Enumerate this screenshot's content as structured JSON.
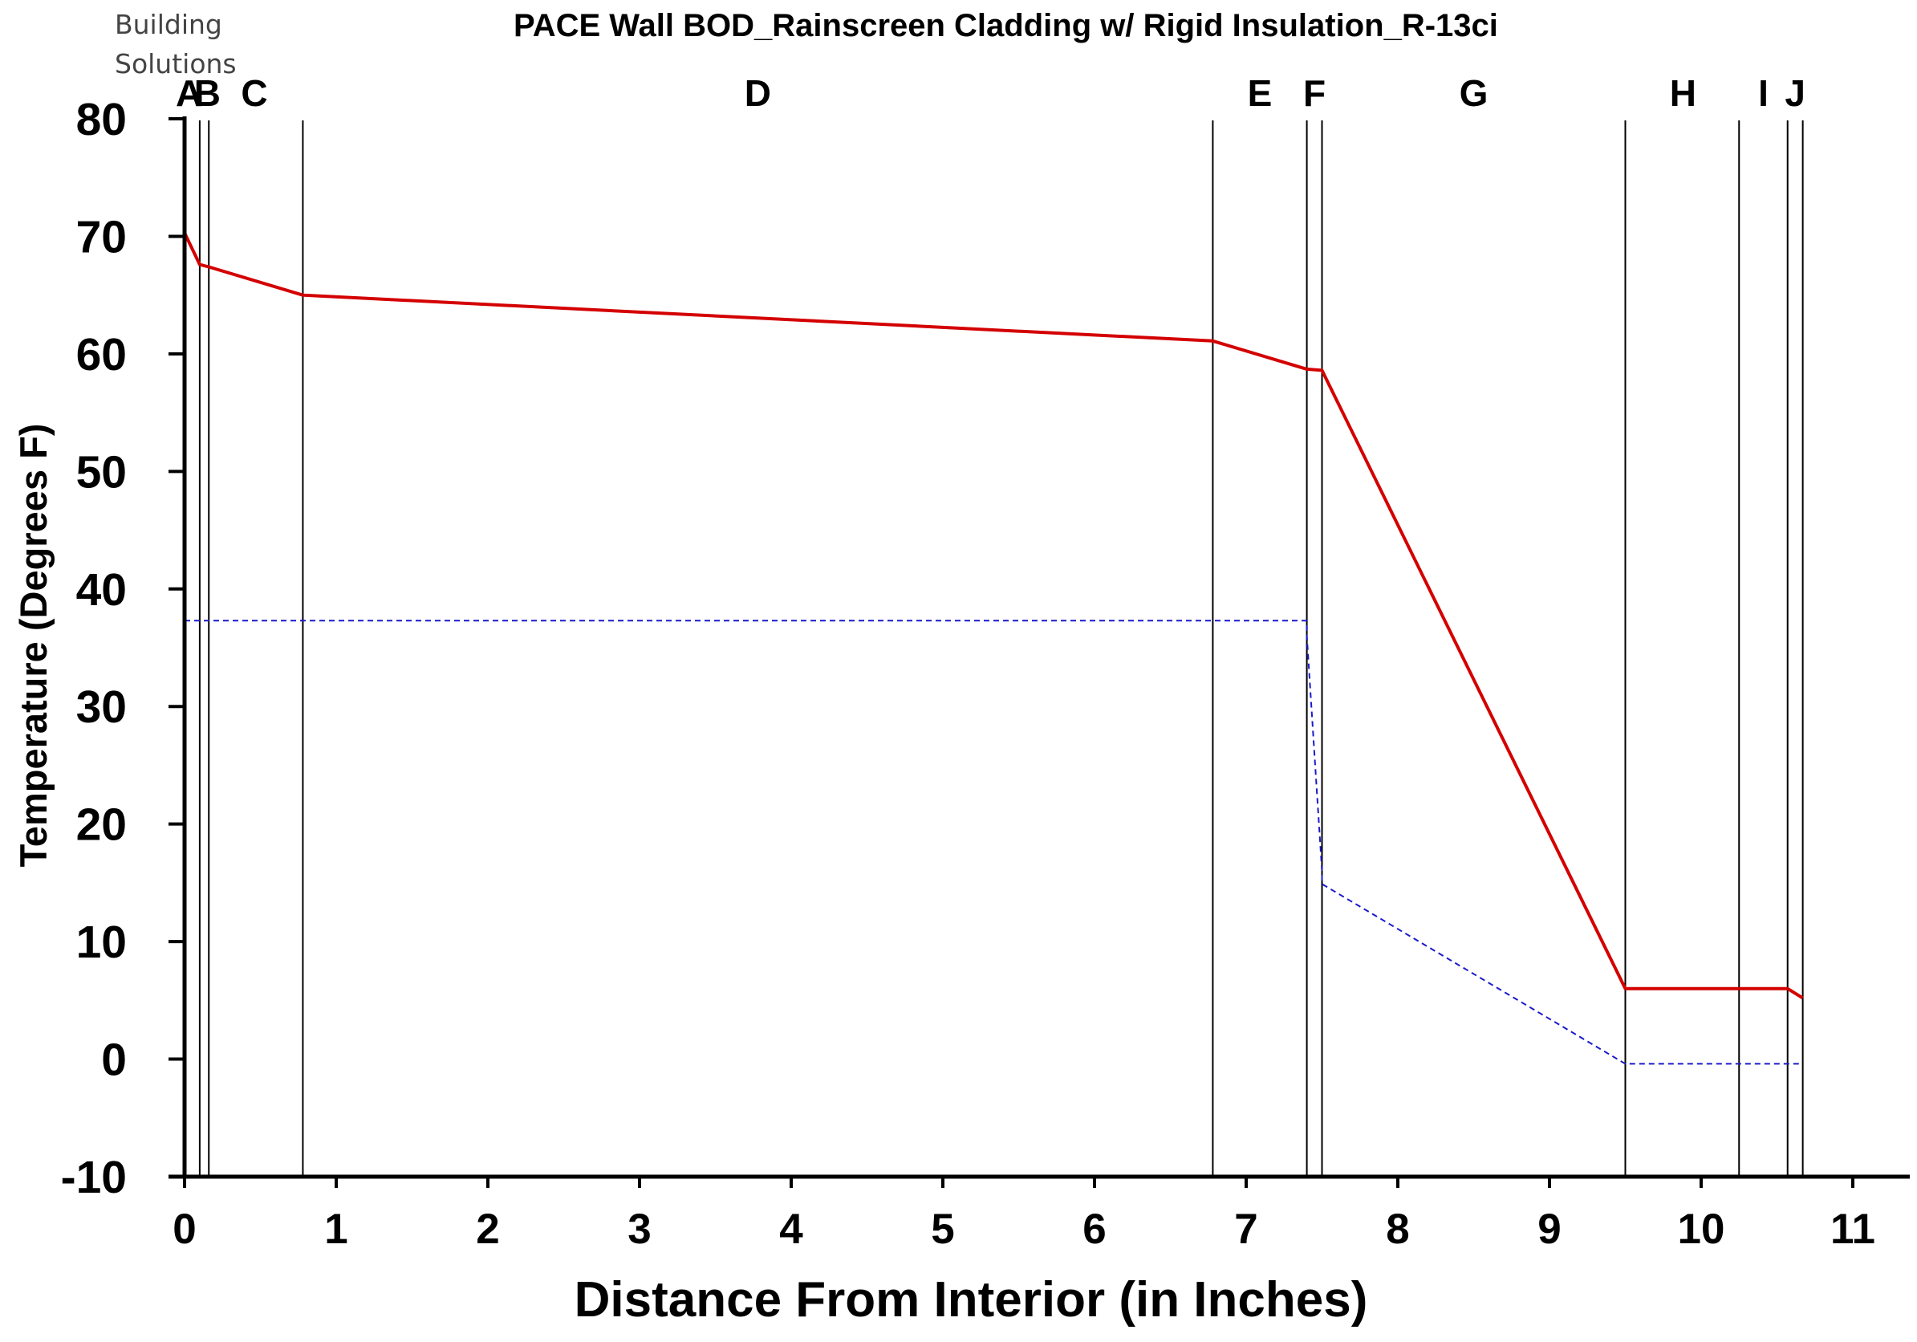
{
  "header": {
    "logo_line1": "Building",
    "logo_line2": "Solutions",
    "subtitle": "PACE Wall BOD_Rainscreen Cladding w/ Rigid Insulation_R-13ci"
  },
  "chart_data": {
    "type": "line",
    "title": "",
    "subtitle": "PACE Wall BOD_Rainscreen Cladding w/ Rigid Insulation_R-13ci",
    "xlabel": "Distance From Interior (in Inches)",
    "ylabel": "Temperature (Degrees F)",
    "xlim": [
      0,
      11.35
    ],
    "ylim": [
      -10,
      80
    ],
    "xticks": [
      0,
      1,
      2,
      3,
      4,
      5,
      6,
      7,
      8,
      9,
      10,
      11
    ],
    "yticks": [
      80,
      70,
      60,
      50,
      40,
      30,
      20,
      10,
      0,
      -10
    ],
    "grid": false,
    "layer_boundaries": [
      0.0,
      0.1,
      0.16,
      0.78,
      6.78,
      7.4,
      7.5,
      9.5,
      10.25,
      10.57,
      10.67
    ],
    "layer_labels": [
      {
        "label": "A",
        "x": 0.03
      },
      {
        "label": "B",
        "x": 0.15
      },
      {
        "label": "C",
        "x": 0.46
      },
      {
        "label": "D",
        "x": 3.78
      },
      {
        "label": "E",
        "x": 7.09
      },
      {
        "label": "F",
        "x": 7.45
      },
      {
        "label": "G",
        "x": 8.5
      },
      {
        "label": "H",
        "x": 9.88
      },
      {
        "label": "I",
        "x": 10.41
      },
      {
        "label": "J",
        "x": 10.62
      }
    ],
    "series": [
      {
        "color": "#d40000",
        "style": "solid",
        "x": [
          0.0,
          0.1,
          0.16,
          0.78,
          6.78,
          7.4,
          7.5,
          9.5,
          10.25,
          10.57,
          10.67
        ],
        "y": [
          70.3,
          67.6,
          67.4,
          65.0,
          61.1,
          58.7,
          58.6,
          6.0,
          6.0,
          6.0,
          5.2
        ]
      },
      {
        "color": "#1a1acc",
        "style": "dashed",
        "x": [
          0.0,
          0.78,
          6.78,
          7.4,
          7.4,
          7.5,
          7.5,
          9.5,
          10.25,
          10.67
        ],
        "y": [
          37.3,
          37.3,
          37.3,
          37.3,
          36.0,
          16.0,
          14.9,
          -0.4,
          -0.4,
          -0.4
        ]
      }
    ]
  }
}
